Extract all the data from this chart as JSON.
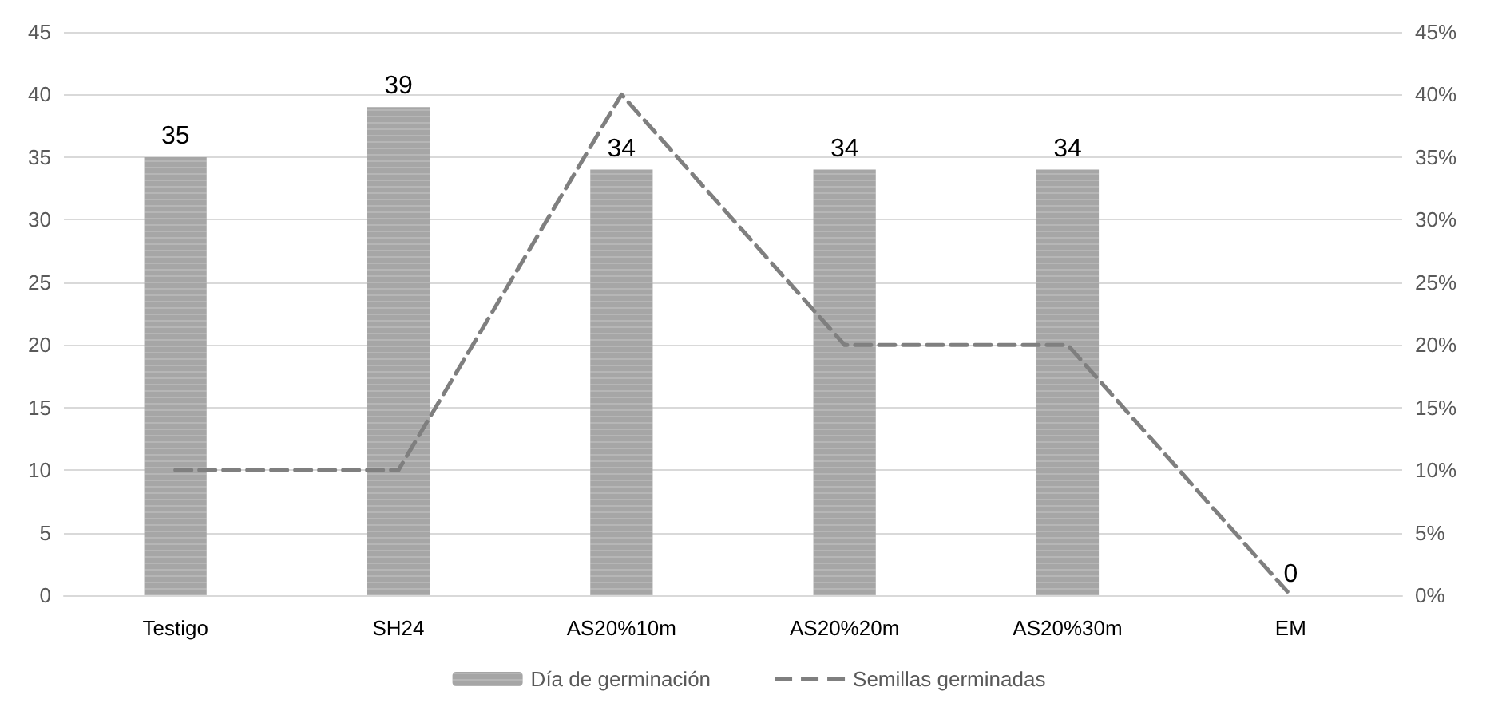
{
  "chart_data": {
    "type": "bar",
    "categories": [
      "Testigo",
      "SH24",
      "AS20%10m",
      "AS20%20m",
      "AS20%30m",
      "EM"
    ],
    "series": [
      {
        "name": "Día de germinación",
        "color": "#a6a6a6",
        "values": [
          35,
          39,
          34,
          34,
          34,
          0
        ],
        "value_labels": [
          "35",
          "39",
          "34",
          "34",
          "34",
          "0"
        ]
      },
      {
        "name": "Semillas germinadas",
        "type": "line",
        "axis": "y2",
        "color": "#7f7f7f",
        "line_style": "dashed",
        "marker": "none",
        "values": [
          10,
          10,
          40,
          20,
          20,
          0
        ]
      }
    ],
    "ylim": [
      0,
      45
    ],
    "yticks": [
      0,
      5,
      10,
      15,
      20,
      25,
      30,
      35,
      40,
      45
    ],
    "y2lim": [
      0,
      45
    ],
    "y2ticks": [
      {
        "value": 0,
        "label": "0%"
      },
      {
        "value": 5,
        "label": "5%"
      },
      {
        "value": 10,
        "label": "10%"
      },
      {
        "value": 15,
        "label": "15%"
      },
      {
        "value": 20,
        "label": "20%"
      },
      {
        "value": 25,
        "label": "25%"
      },
      {
        "value": 30,
        "label": "30%"
      },
      {
        "value": 35,
        "label": "35%"
      },
      {
        "value": 40,
        "label": "40%"
      },
      {
        "value": 45,
        "label": "45%"
      }
    ],
    "grid": "y",
    "legend": "bottom"
  }
}
